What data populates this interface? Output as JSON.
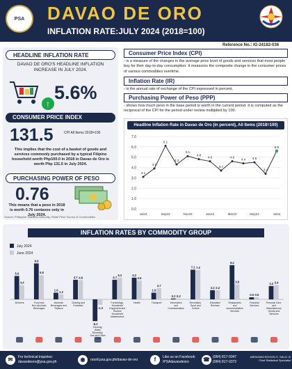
{
  "header": {
    "title": "DAVAO DE ORO",
    "subtitle": "INFLATION RATE:JULY 2024 (2018=100)",
    "logo_left_text": "PSA",
    "reference": "Reference No.: IG-24182-036"
  },
  "headline": {
    "section": "HEADLINE INFLATION RATE",
    "text": "DAVAO DE ORO'S HEADLINE INFLATION INCREASE IN JULY 2024.",
    "rate": "5.6%"
  },
  "cpi": {
    "section": "CONSUMER PRICE INDEX",
    "value": "131.5",
    "note": "CPI All Items 2018=100",
    "text": "This implies that the cost of a basket of goods and services commonly purchased by a typical Filipino household worth Php100.0 in 2018 in Davao de Oro is worth Php 131.5 in July 2024."
  },
  "ppp": {
    "section": "PURCHASING POWER OF PESO",
    "value": "0.76",
    "text": "This means that a peso in 2018 is worth 0.76 centavos only in July 2024."
  },
  "source_note": "Source: Philippine Statistics Authority, Retail Price Survey of Commodities",
  "definitions": [
    {
      "title": "Consumer Price Index (CPI)",
      "text": "- is a measure of the changes in the average price level of goods and services that most people buy for their day-to-day consumption. It measures the composite change in the consumer prices of various commodities overtime."
    },
    {
      "title": "Inflation Rate (IR)",
      "text": "- is the annual rate of exchange of the CPI expressed in percent."
    },
    {
      "title": "Purchasing Power of Peso (PPP)",
      "text": "- shows how much peso in the base period is worth in the current period. It is computed as the reciprocal of the CPI for the period under review multiplied by 100."
    }
  ],
  "colors": {
    "navy": "#1b2a4a",
    "gold": "#f0c541",
    "green": "#1fa64a",
    "line": "#333333",
    "bar_dark": "#1b2a4a",
    "bar_light": "#c9ccd4"
  },
  "chart_data": [
    {
      "type": "line",
      "title": "Headline Inflation Rate in Davao de Oro (in percent), All Items (2018=100)",
      "categories": [
        "Jul23",
        "Aug23",
        "Sep23",
        "Oct23",
        "Nov23",
        "Dec23",
        "Jan24",
        "Feb24",
        "Mar24",
        "Apr24",
        "May24",
        "Jun24",
        "Jul24"
      ],
      "values": [
        3.1,
        3.9,
        6.1,
        4.3,
        5.1,
        4.8,
        4.6,
        3.7,
        4.6,
        4.4,
        4.5,
        3.4,
        5.6
      ],
      "ylim": [
        0,
        7
      ],
      "yticks": [
        0,
        1,
        2,
        3,
        4,
        5,
        6,
        7
      ],
      "grid": true
    },
    {
      "type": "bar",
      "title": "INFLATION RATES BY COMMODITY GROUP",
      "categories": [
        "All Items",
        "Food and Non-Alcoholic Beverages",
        "Alcoholic Beverages and Tobacco",
        "Clothing and Footwear",
        "Housing, Water, Electricity, Gas and Other Fuels",
        "Furnishings, Household Equipment and Routine Household Maintenance",
        "Health",
        "Transport",
        "Information and Communication",
        "Recreation, Sport and Culture",
        "Education Services",
        "Restaurants and Accommodation Services",
        "Financial Services",
        "Personal Care, and Miscellaneous Goods and Services"
      ],
      "series": [
        {
          "name": "July 2024",
          "values": [
            5.6,
            8.6,
            1.6,
            4.7,
            -5.2,
            4.7,
            5.2,
            1.6,
            0.2,
            7.1,
            2.2,
            8.2,
            0.5,
            3.2
          ]
        },
        {
          "name": "June 2024",
          "values": [
            3.4,
            5.8,
            1.2,
            4.6,
            -1.3,
            5.2,
            4.5,
            2.7,
            0.2,
            7.0,
            2.2,
            3.6,
            0.5,
            3.4
          ]
        }
      ],
      "legend": "top-left"
    }
  ],
  "footer": {
    "email_label": "For technical inquiries:",
    "email": "davaodeoro@psa.gov.ph",
    "web": "rssoll.psa.gov.ph/davao-de-oro",
    "fb_label": "Like us on Facebook:",
    "fb": "/PSAdavaodeoro",
    "phone": "(084) 817-0347",
    "phone2": "(084) 817-0372",
    "signatory": "ABRAHAM EDISON S. SALIC III",
    "signatory_title": "Chief Statistical Specialist"
  }
}
